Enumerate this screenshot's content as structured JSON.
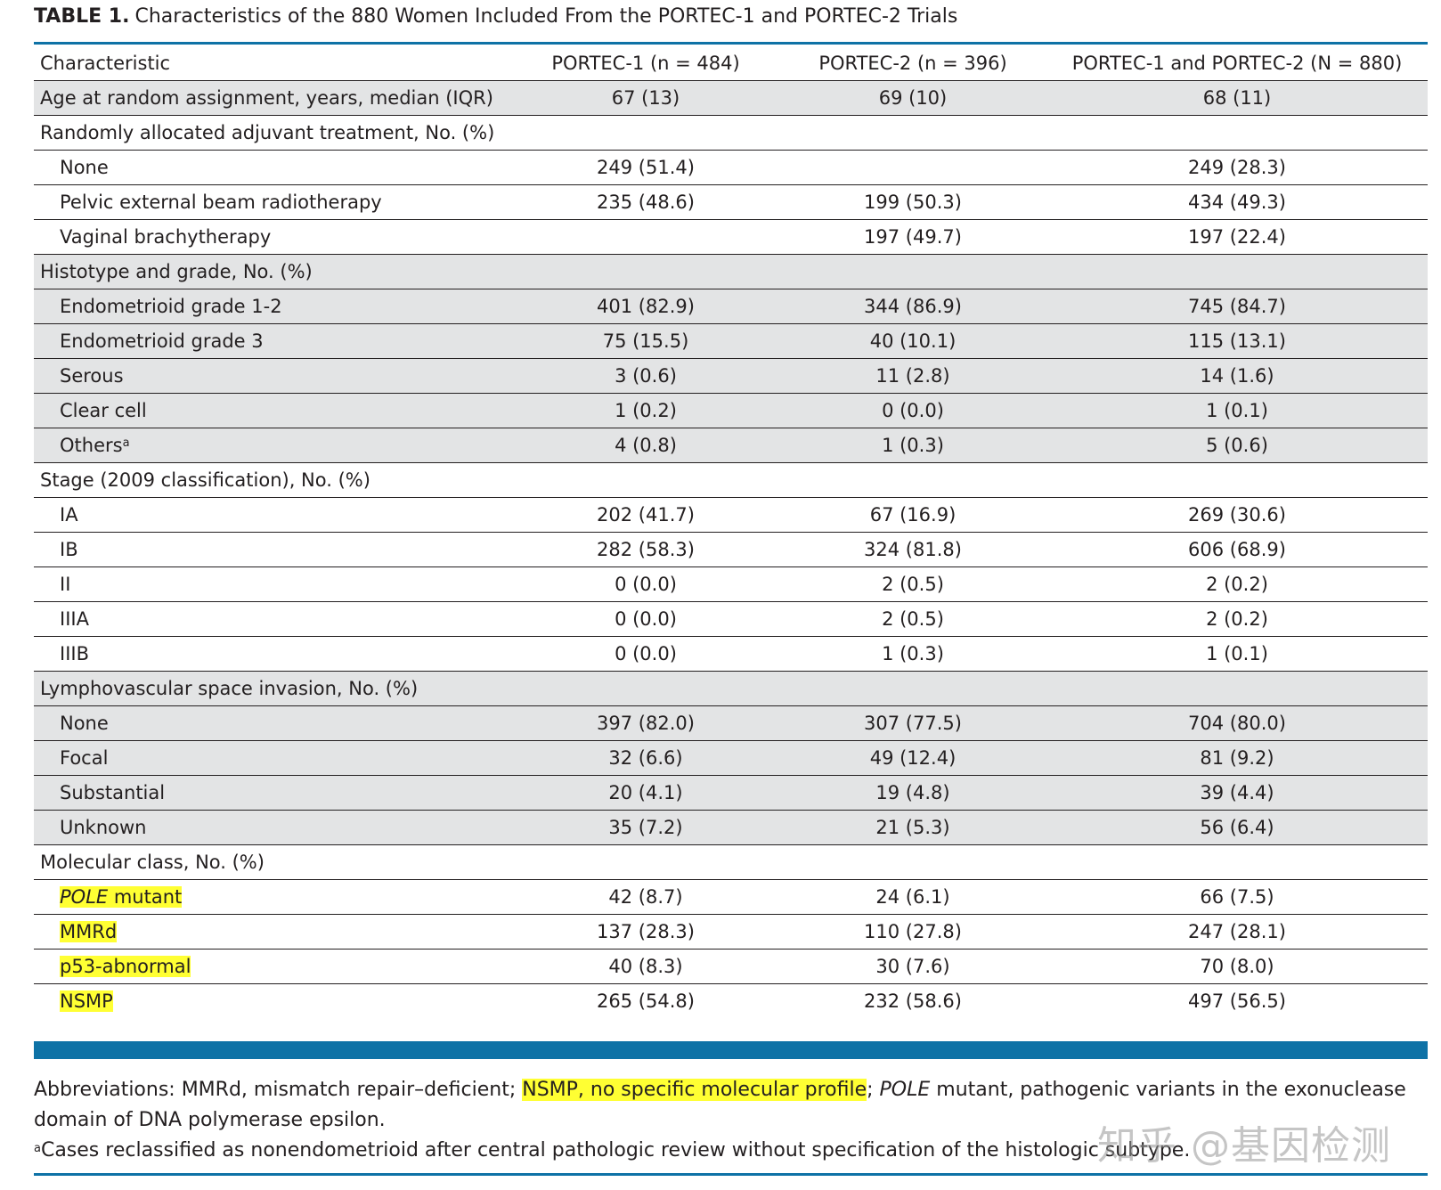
{
  "title": {
    "label": "TABLE 1.",
    "text": "Characteristics of the 880 Women Included From the PORTEC-1 and PORTEC-2 Trials"
  },
  "columns": [
    "Characteristic",
    "PORTEC-1 (n = 484)",
    "PORTEC-2 (n = 396)",
    "PORTEC-1 and PORTEC-2 (N = 880)"
  ],
  "rows": [
    {
      "label": "Age at random assignment, years, median (IQR)",
      "values": [
        "67 (13)",
        "69 (10)",
        "68 (11)"
      ]
    },
    {
      "label": "Randomly allocated adjuvant treatment, No. (%)",
      "values": [
        "",
        "",
        ""
      ]
    },
    {
      "label": "None",
      "values": [
        "249 (51.4)",
        "",
        "249 (28.3)"
      ]
    },
    {
      "label": "Pelvic external beam radiotherapy",
      "values": [
        "235 (48.6)",
        "199 (50.3)",
        "434 (49.3)"
      ]
    },
    {
      "label": "Vaginal brachytherapy",
      "values": [
        "",
        "197 (49.7)",
        "197 (22.4)"
      ]
    },
    {
      "label": "Histotype and grade, No. (%)",
      "values": [
        "",
        "",
        ""
      ]
    },
    {
      "label": "Endometrioid grade 1-2",
      "values": [
        "401 (82.9)",
        "344 (86.9)",
        "745 (84.7)"
      ]
    },
    {
      "label": "Endometrioid grade 3",
      "values": [
        "75 (15.5)",
        "40 (10.1)",
        "115 (13.1)"
      ]
    },
    {
      "label": "Serous",
      "values": [
        "3 (0.6)",
        "11 (2.8)",
        "14 (1.6)"
      ]
    },
    {
      "label": "Clear cell",
      "values": [
        "1 (0.2)",
        "0 (0.0)",
        "1 (0.1)"
      ]
    },
    {
      "label": "Others",
      "sup": "a",
      "values": [
        "4 (0.8)",
        "1 (0.3)",
        "5 (0.6)"
      ]
    },
    {
      "label": "Stage (2009 classification), No. (%)",
      "values": [
        "",
        "",
        ""
      ]
    },
    {
      "label": "IA",
      "values": [
        "202 (41.7)",
        "67 (16.9)",
        "269 (30.6)"
      ]
    },
    {
      "label": "IB",
      "values": [
        "282 (58.3)",
        "324 (81.8)",
        "606 (68.9)"
      ]
    },
    {
      "label": "II",
      "values": [
        "0 (0.0)",
        "2 (0.5)",
        "2 (0.2)"
      ]
    },
    {
      "label": "IIIA",
      "values": [
        "0 (0.0)",
        "2 (0.5)",
        "2 (0.2)"
      ]
    },
    {
      "label": "IIIB",
      "values": [
        "0 (0.0)",
        "1 (0.3)",
        "1 (0.1)"
      ]
    },
    {
      "label": "Lymphovascular space invasion, No. (%)",
      "values": [
        "",
        "",
        ""
      ]
    },
    {
      "label": "None",
      "values": [
        "397 (82.0)",
        "307 (77.5)",
        "704 (80.0)"
      ]
    },
    {
      "label": "Focal",
      "values": [
        "32 (6.6)",
        "49 (12.4)",
        "81 (9.2)"
      ]
    },
    {
      "label": "Substantial",
      "values": [
        "20 (4.1)",
        "19 (4.8)",
        "39 (4.4)"
      ]
    },
    {
      "label": "Unknown",
      "values": [
        "35 (7.2)",
        "21 (5.3)",
        "56 (6.4)"
      ]
    },
    {
      "label": "Molecular class, No. (%)",
      "values": [
        "",
        "",
        ""
      ]
    },
    {
      "label_italic": "POLE",
      "label": " mutant",
      "highlight": true,
      "values": [
        "42 (8.7)",
        "24 (6.1)",
        "66 (7.5)"
      ]
    },
    {
      "label": "MMRd",
      "highlight": true,
      "values": [
        "137 (28.3)",
        "110 (27.8)",
        "247 (28.1)"
      ]
    },
    {
      "label": "p53-abnormal",
      "highlight": true,
      "values": [
        "40 (8.3)",
        "30 (7.6)",
        "70 (8.0)"
      ]
    },
    {
      "label": "NSMP",
      "highlight": true,
      "values": [
        "265 (54.8)",
        "232 (58.6)",
        "497 (56.5)"
      ]
    }
  ],
  "footnotes": {
    "abbrev_prefix": "Abbreviations: MMRd, mismatch repair–deficient; ",
    "abbrev_highlight": "NSMP, no specific molecular profile",
    "abbrev_sep": "; ",
    "abbrev_italic": "POLE",
    "abbrev_suffix": " mutant, pathogenic variants in the exonuclease domain of DNA polymerase epsilon.",
    "note_marker": "a",
    "note_text": "Cases reclassified as nonendometrioid after central pathologic review without specification of the histologic subtype."
  },
  "watermark": "知乎 @基因检测",
  "colors": {
    "rule": "#0e72a6",
    "shade": "#e3e4e5",
    "highlight": "#ffff33"
  }
}
